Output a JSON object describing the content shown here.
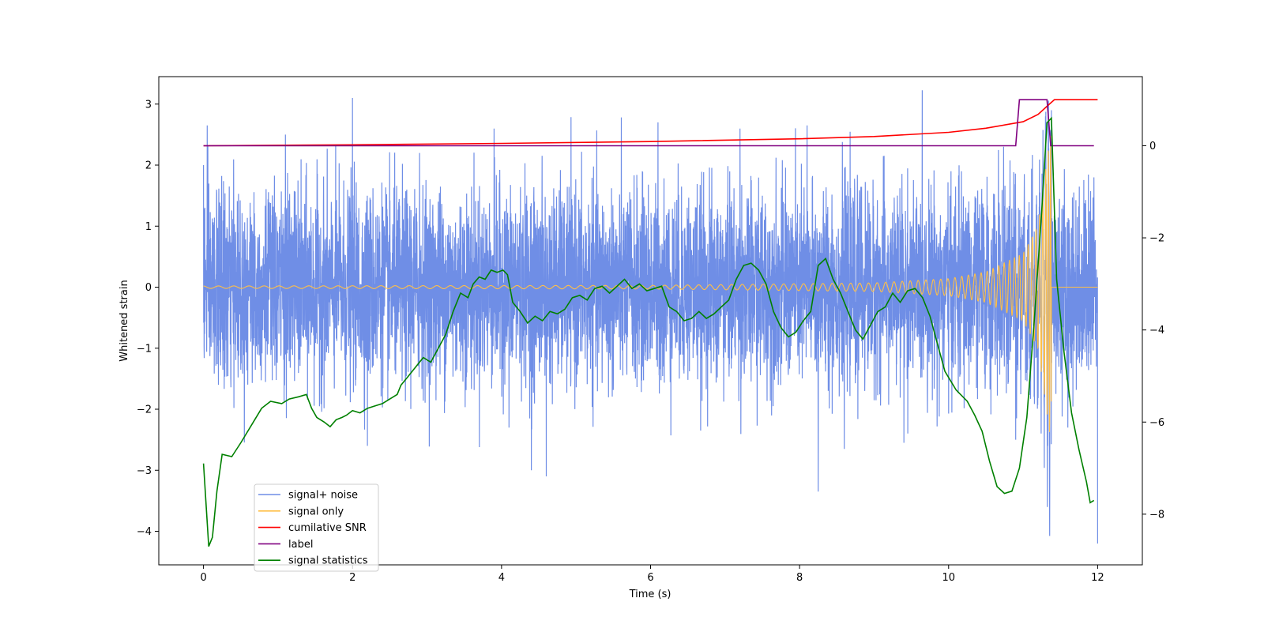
{
  "chart_data": {
    "type": "line",
    "title": "",
    "xlabel": "Time (s)",
    "ylabel": "Whitened strain",
    "y2label": "",
    "xlim": [
      -0.6,
      12.6
    ],
    "ylim": [
      -4.55,
      3.45
    ],
    "y2lim": [
      -9.1,
      1.5
    ],
    "xticks": [
      0,
      2,
      4,
      6,
      8,
      10,
      12
    ],
    "yticks": [
      -4,
      -3,
      -2,
      -1,
      0,
      1,
      2,
      3
    ],
    "y2ticks": [
      -8,
      -6,
      -4,
      -2,
      0
    ],
    "grid": false,
    "legend_position": "lower-left",
    "series": [
      {
        "name": "signal+ noise",
        "axis": "left",
        "color": "#6f8ee6",
        "description_points": {
          "x": [
            0.0,
            0.05,
            0.2,
            1.1,
            2.0,
            2.2,
            2.9,
            3.9,
            4.1,
            4.4,
            4.6,
            6.1,
            7.2,
            8.1,
            8.25,
            8.6,
            9.4,
            10.9,
            11.3,
            11.33,
            11.38,
            11.6,
            11.95,
            12.0
          ],
          "y": [
            2.0,
            2.65,
            -1.6,
            2.5,
            3.1,
            -2.6,
            2.2,
            2.6,
            -2.3,
            -3.0,
            -3.1,
            2.7,
            2.6,
            2.65,
            -3.35,
            -2.65,
            -2.55,
            -2.5,
            2.8,
            -2.6,
            2.9,
            -2.3,
            1.8,
            -4.2
          ]
        }
      },
      {
        "name": "signal only",
        "axis": "left",
        "color": "#ffbf47",
        "description_points": {
          "envelope_t": [
            0,
            6,
            9,
            10,
            10.5,
            11.0,
            11.2,
            11.3,
            11.38
          ],
          "envelope_amp": [
            0.02,
            0.03,
            0.07,
            0.14,
            0.25,
            0.55,
            1.0,
            1.9,
            2.6
          ]
        }
      },
      {
        "name": "cumilative SNR",
        "axis": "right",
        "color": "#ff0000",
        "x": [
          0.0,
          2.0,
          4.0,
          6.0,
          8.0,
          9.0,
          10.0,
          10.5,
          11.0,
          11.2,
          11.35,
          11.42,
          11.5,
          12.0
        ],
        "values": [
          0.0,
          0.02,
          0.05,
          0.09,
          0.15,
          0.2,
          0.29,
          0.38,
          0.52,
          0.68,
          0.9,
          1.0,
          1.0,
          1.0
        ]
      },
      {
        "name": "label",
        "axis": "right",
        "color": "#800080",
        "x": [
          0.0,
          10.9,
          10.95,
          11.32,
          11.37,
          11.95
        ],
        "values": [
          0.0,
          0.0,
          1.0,
          1.0,
          0.0,
          0.0
        ]
      },
      {
        "name": "signal statistics",
        "axis": "right",
        "color": "#008000",
        "x": [
          0.0,
          0.07,
          0.12,
          0.18,
          0.25,
          0.38,
          0.5,
          0.65,
          0.78,
          0.9,
          1.05,
          1.15,
          1.28,
          1.38,
          1.45,
          1.52,
          1.62,
          1.7,
          1.78,
          1.86,
          1.92,
          2.0,
          2.1,
          2.2,
          2.3,
          2.4,
          2.5,
          2.6,
          2.65,
          2.75,
          2.85,
          2.95,
          3.05,
          3.15,
          3.25,
          3.35,
          3.45,
          3.55,
          3.62,
          3.7,
          3.78,
          3.86,
          3.94,
          4.02,
          4.08,
          4.15,
          4.25,
          4.35,
          4.45,
          4.55,
          4.65,
          4.75,
          4.85,
          4.95,
          5.05,
          5.15,
          5.25,
          5.35,
          5.45,
          5.55,
          5.65,
          5.75,
          5.85,
          5.95,
          6.05,
          6.15,
          6.25,
          6.35,
          6.45,
          6.55,
          6.65,
          6.75,
          6.85,
          6.95,
          7.05,
          7.15,
          7.25,
          7.35,
          7.45,
          7.55,
          7.65,
          7.75,
          7.85,
          7.95,
          8.05,
          8.15,
          8.25,
          8.35,
          8.45,
          8.55,
          8.65,
          8.75,
          8.85,
          8.95,
          9.05,
          9.15,
          9.25,
          9.35,
          9.45,
          9.55,
          9.65,
          9.75,
          9.85,
          9.95,
          10.1,
          10.25,
          10.35,
          10.45,
          10.55,
          10.65,
          10.75,
          10.85,
          10.95,
          11.05,
          11.15,
          11.25,
          11.32,
          11.38,
          11.45,
          11.55,
          11.65,
          11.75,
          11.85,
          11.9,
          11.95
        ],
        "values": [
          -6.9,
          -8.7,
          -8.5,
          -7.5,
          -6.7,
          -6.75,
          -6.45,
          -6.05,
          -5.7,
          -5.55,
          -5.6,
          -5.5,
          -5.45,
          -5.4,
          -5.7,
          -5.9,
          -6.0,
          -6.1,
          -5.95,
          -5.9,
          -5.85,
          -5.75,
          -5.8,
          -5.7,
          -5.65,
          -5.6,
          -5.5,
          -5.4,
          -5.2,
          -5.0,
          -4.8,
          -4.6,
          -4.7,
          -4.4,
          -4.1,
          -3.6,
          -3.2,
          -3.3,
          -3.0,
          -2.85,
          -2.9,
          -2.7,
          -2.75,
          -2.7,
          -2.8,
          -3.4,
          -3.6,
          -3.85,
          -3.7,
          -3.8,
          -3.6,
          -3.65,
          -3.55,
          -3.3,
          -3.25,
          -3.35,
          -3.1,
          -3.05,
          -3.2,
          -3.05,
          -2.9,
          -3.1,
          -3.0,
          -3.15,
          -3.1,
          -3.05,
          -3.5,
          -3.6,
          -3.8,
          -3.75,
          -3.6,
          -3.75,
          -3.65,
          -3.5,
          -3.35,
          -2.9,
          -2.6,
          -2.55,
          -2.7,
          -3.0,
          -3.6,
          -3.95,
          -4.15,
          -4.05,
          -3.8,
          -3.6,
          -2.6,
          -2.45,
          -2.9,
          -3.2,
          -3.6,
          -4.0,
          -4.2,
          -3.9,
          -3.6,
          -3.5,
          -3.2,
          -3.4,
          -3.15,
          -3.1,
          -3.3,
          -3.7,
          -4.3,
          -4.9,
          -5.3,
          -5.55,
          -5.85,
          -6.2,
          -6.85,
          -7.4,
          -7.55,
          -7.5,
          -7.0,
          -5.9,
          -3.8,
          -1.4,
          0.5,
          0.6,
          -2.9,
          -4.5,
          -5.8,
          -6.6,
          -7.3,
          -7.75,
          -7.7
        ]
      }
    ]
  }
}
